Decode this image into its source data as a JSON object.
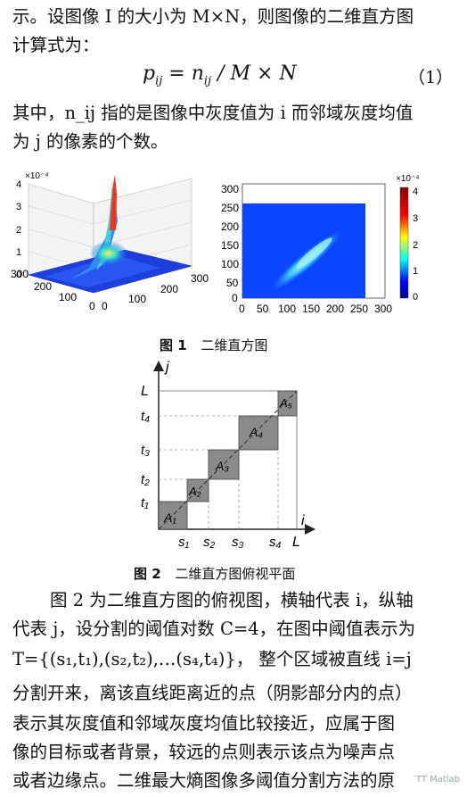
{
  "para1": {
    "line1": "示。设图像 I 的大小为 M×N，则图像的二维直方图",
    "line2": "计算式为："
  },
  "formula": {
    "lhs": "p",
    "lhs_sub": "ij",
    "rhs": " = n",
    "rhs_sub": "ij",
    "tail": " / M × N",
    "number": "（1）"
  },
  "para2": {
    "line1": "其中，n_ij 指的是图像中灰度值为 i 而邻域灰度均值",
    "line2": "为 j 的像素的个数。"
  },
  "figure1": {
    "caption_label": "图 1",
    "caption_text": "二维直方图",
    "surface_plot": {
      "scale_label": "×10⁻⁴",
      "z_ticks": [
        "0",
        "1",
        "2",
        "3",
        "4"
      ],
      "x_ticks": [
        "0",
        "100",
        "200",
        "300"
      ],
      "y_ticks": [
        "300",
        "200",
        "100",
        "0"
      ]
    },
    "heatmap": {
      "scale_label": "×10⁻⁴",
      "y_ticks": [
        "0",
        "50",
        "100",
        "150",
        "200",
        "250",
        "300"
      ],
      "x_ticks": [
        "0",
        "50",
        "100",
        "150",
        "200",
        "250",
        "300"
      ],
      "colorbar_ticks": [
        "0",
        "1",
        "2",
        "3",
        "4"
      ]
    }
  },
  "figure2": {
    "caption_label": "图 2",
    "caption_text": "二维直方图俯视平面",
    "axis_i": "i",
    "axis_j": "j",
    "L_x": "L",
    "L_y": "L",
    "s_labels": [
      "s₁",
      "s₂",
      "s₃",
      "s₄"
    ],
    "t_labels": [
      "t₁",
      "t₂",
      "t₃",
      "t₄"
    ],
    "regions": [
      "A₁",
      "A₂",
      "A₃",
      "A₄",
      "A₅"
    ]
  },
  "para3": {
    "line1": "图 2 为二维直方图的俯视图，横轴代表 i，纵轴",
    "line2": "代表 j，设分割的阈值对数 C=4，在图中阈值表示为",
    "line3": "T={(s₁,t₁),(s₂,t₂),…(s₄,t₄)}， 整个区域被直线 i=j",
    "line4": "分割开来，离该直线距离近的点（阴影部分内的点）",
    "line5": "表示其灰度值和邻域灰度均值比较接近，应属于图",
    "line6": "像的目标或者背景，较远的点则表示该点为噪声点",
    "line7": "或者边缘点。二维最大熵图像多阈值分割方法的原"
  },
  "watermark": "TT Matlab"
}
